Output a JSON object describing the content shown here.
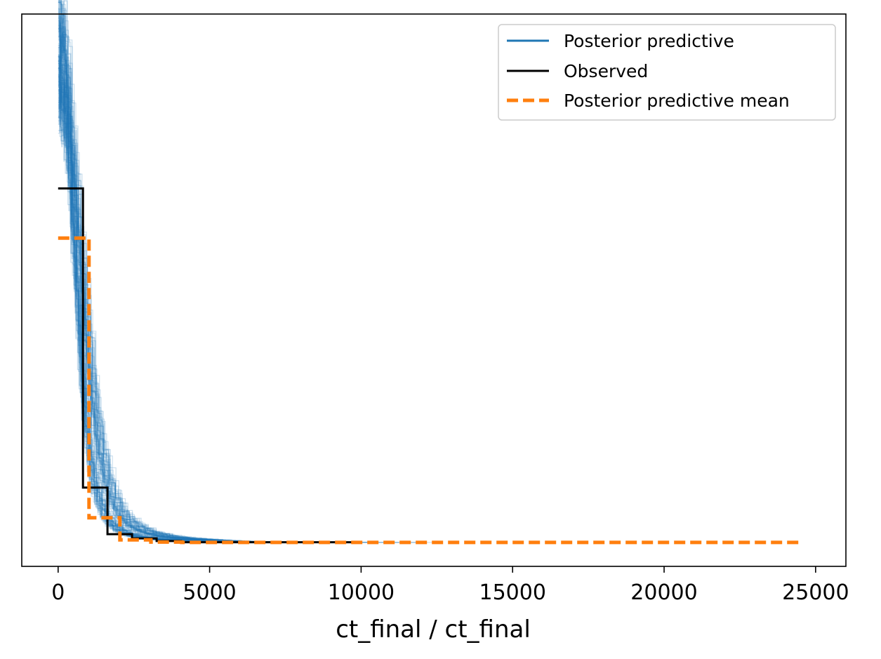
{
  "chart_data": {
    "type": "line",
    "title": "",
    "xlabel": "ct_final / ct_final",
    "ylabel": "",
    "xlim": [
      -1200,
      26000
    ],
    "ylim": [
      -0.045,
      1.0
    ],
    "x_ticks": [
      0,
      5000,
      10000,
      15000,
      20000,
      25000
    ],
    "x_tick_labels": [
      "0",
      "5000",
      "10000",
      "15000",
      "20000",
      "25000"
    ],
    "y_ticks_visible": false,
    "grid": false,
    "legend_position": "top-right",
    "draw_style": "step",
    "series": [
      {
        "name": "Posterior predictive",
        "color": "#1f77b4",
        "style": "solid",
        "role": "draws",
        "draws": 100,
        "x": [
          0,
          150,
          300,
          450,
          600,
          750,
          900,
          1050,
          1200,
          1400,
          1600,
          1800,
          2000,
          2300,
          2600,
          3000,
          3500,
          4200,
          5000,
          6500,
          8000,
          10000,
          12000,
          24500
        ],
        "y": [
          0.95,
          0.93,
          0.85,
          0.72,
          0.58,
          0.45,
          0.33,
          0.24,
          0.17,
          0.11,
          0.075,
          0.052,
          0.038,
          0.026,
          0.018,
          0.012,
          0.008,
          0.005,
          0.003,
          0.0015,
          0.0008,
          0.0004,
          0.0002,
          0.0
        ]
      },
      {
        "name": "Observed",
        "color": "#000000",
        "style": "solid",
        "x": [
          0,
          820,
          820,
          1630,
          1630,
          2440,
          2440,
          3250,
          3250,
          4060,
          4060,
          9900
        ],
        "y": [
          0.67,
          0.67,
          0.104,
          0.104,
          0.016,
          0.016,
          0.008,
          0.008,
          0.003,
          0.003,
          0.0007,
          0.0007
        ]
      },
      {
        "name": "Posterior predictive mean",
        "color": "#ff7f0e",
        "style": "dashed",
        "x": [
          0,
          1020,
          1020,
          2040,
          2040,
          3060,
          3060,
          4080,
          4080,
          24500
        ],
        "y": [
          0.576,
          0.576,
          0.047,
          0.047,
          0.005,
          0.005,
          0.001,
          0.001,
          0.0003,
          0.0003
        ]
      }
    ]
  }
}
